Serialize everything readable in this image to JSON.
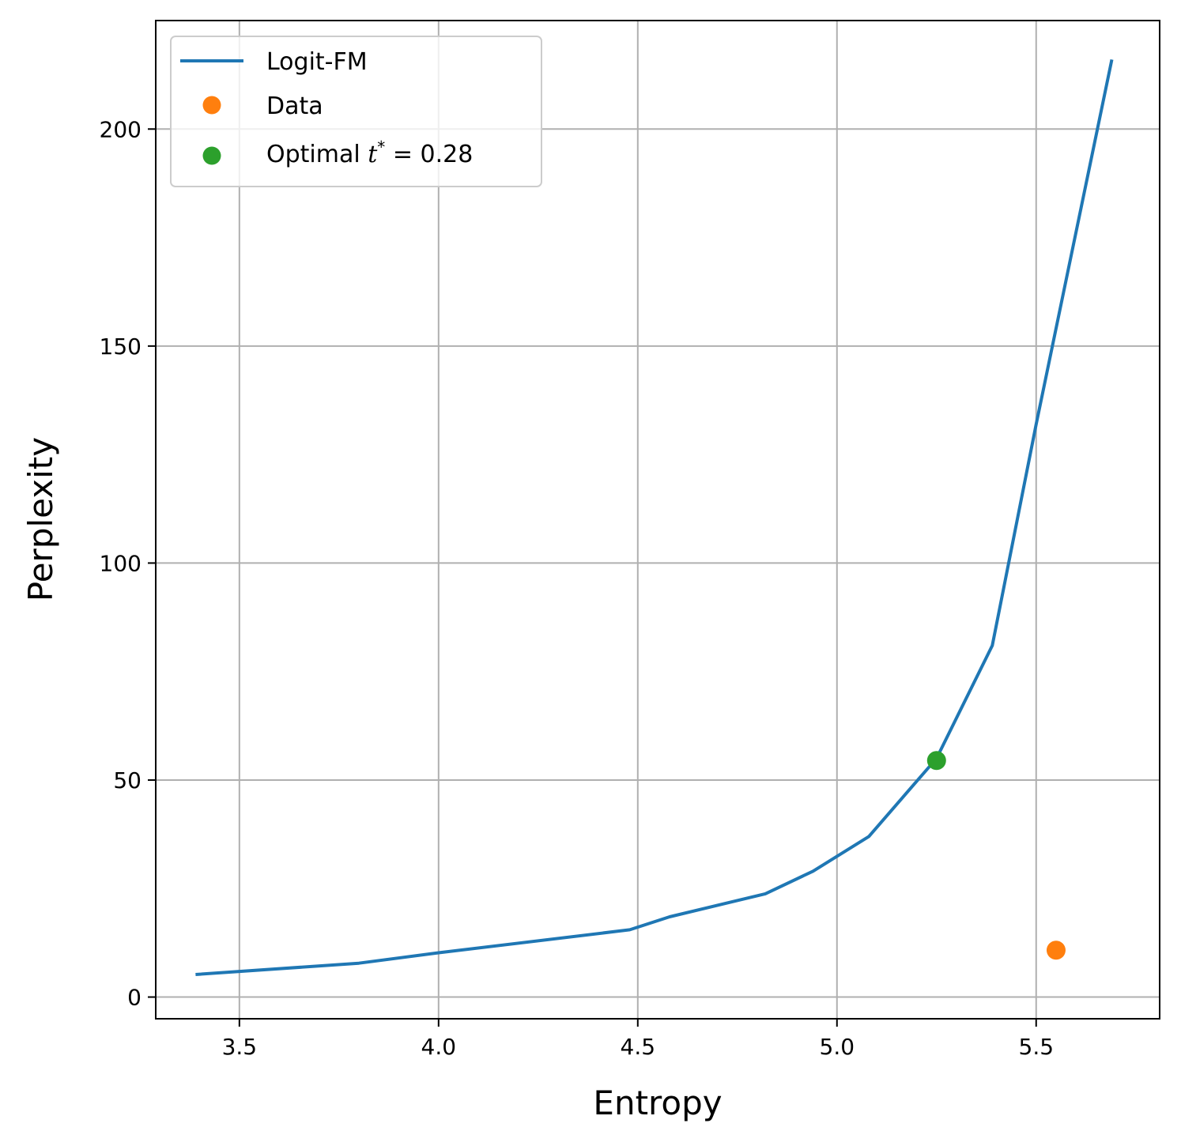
{
  "chart_data": {
    "type": "line",
    "xlabel": "Entropy",
    "ylabel": "Perplexity",
    "xlim": [
      3.29,
      5.81
    ],
    "ylim": [
      -5,
      225
    ],
    "xticks": [
      3.5,
      4.0,
      4.5,
      5.0,
      5.5
    ],
    "xtick_labels": [
      "3.5",
      "4.0",
      "4.5",
      "5.0",
      "5.5"
    ],
    "yticks": [
      0,
      50,
      100,
      150,
      200
    ],
    "ytick_labels": [
      "0",
      "50",
      "100",
      "150",
      "200"
    ],
    "grid": true,
    "legend_position": "top-left",
    "series": [
      {
        "name": "Logit-FM",
        "kind": "line",
        "color": "#1f77b4",
        "x": [
          3.39,
          3.8,
          4.0,
          4.48,
          4.58,
          4.82,
          4.94,
          5.08,
          5.25,
          5.39,
          5.5,
          5.69
        ],
        "y": [
          5.2,
          7.8,
          10.2,
          15.5,
          18.5,
          23.8,
          29.0,
          37.0,
          55.0,
          81.0,
          132.0,
          216.0
        ]
      },
      {
        "name": "Data",
        "kind": "scatter",
        "color": "#ff7f0e",
        "x": [
          5.55
        ],
        "y": [
          10.8
        ]
      },
      {
        "name_prefix": "Optimal ",
        "name_var": "t",
        "name_sup": "*",
        "name_suffix": " = 0.28",
        "kind": "scatter",
        "color": "#2ca02c",
        "x": [
          5.25
        ],
        "y": [
          54.5
        ]
      }
    ]
  }
}
